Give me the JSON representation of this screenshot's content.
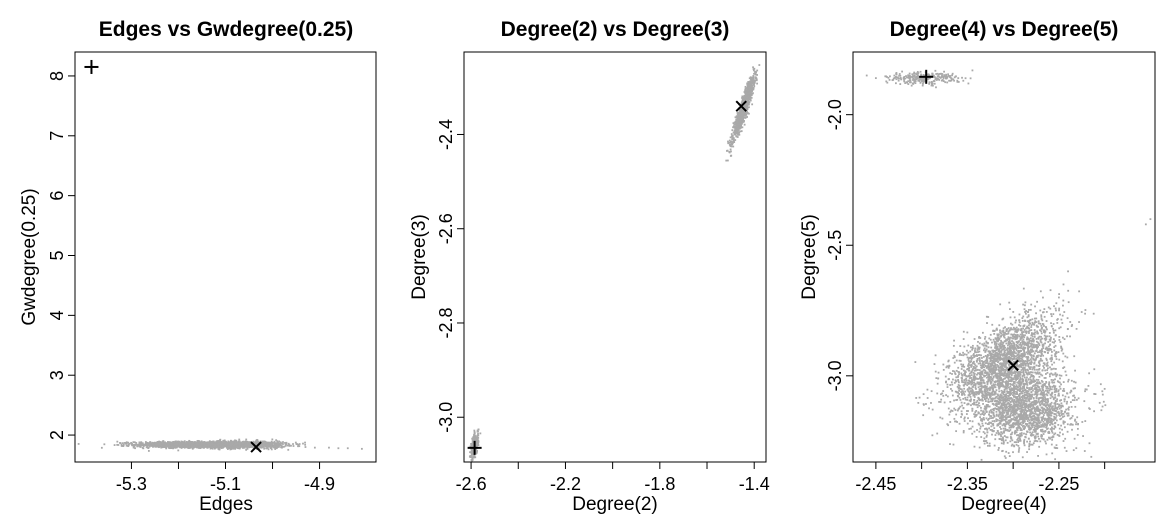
{
  "chart_data": [
    {
      "type": "scatter",
      "title": "Edges vs Gwdegree(0.25)",
      "xlabel": "Edges",
      "ylabel": "Gwdegree(0.25)",
      "xlim": [
        -5.42,
        -4.78
      ],
      "ylim": [
        1.55,
        8.4
      ],
      "xticks": [
        -5.3,
        -5.2,
        -5.1,
        -5.0,
        -4.9
      ],
      "xtick_labels": [
        "-5.3",
        "",
        "-5.1",
        "",
        "-4.9"
      ],
      "yticks": [
        2,
        3,
        4,
        5,
        6,
        7,
        8
      ],
      "ytick_labels": [
        "2",
        "3",
        "4",
        "5",
        "6",
        "7",
        "8"
      ],
      "point_color": "#a9a9a9",
      "clusters": [
        {
          "cx": -5.17,
          "cy": 1.84,
          "sx": 0.06,
          "sy": 0.025,
          "n": 1400,
          "rho": 0.0
        },
        {
          "cx": -5.06,
          "cy": 1.84,
          "sx": 0.045,
          "sy": 0.03,
          "n": 900,
          "rho": 0.0
        }
      ],
      "sparse_points": [
        [
          -4.93,
          1.8
        ],
        [
          -4.91,
          1.79
        ],
        [
          -4.88,
          1.79
        ],
        [
          -4.86,
          1.78
        ],
        [
          -4.84,
          1.78
        ],
        [
          -4.81,
          1.77
        ],
        [
          -5.31,
          1.88
        ],
        [
          -5.33,
          1.89
        ]
      ],
      "plus_marker": [
        -5.385,
        8.15
      ],
      "x_marker": [
        -5.035,
        1.8
      ]
    },
    {
      "type": "scatter",
      "title": "Degree(2) vs Degree(3)",
      "xlabel": "Degree(2)",
      "ylabel": "Degree(3)",
      "xlim": [
        -2.63,
        -1.35
      ],
      "ylim": [
        -3.095,
        -2.225
      ],
      "xticks": [
        -2.6,
        -2.4,
        -2.2,
        -2.0,
        -1.8,
        -1.6,
        -1.4
      ],
      "xtick_labels": [
        "-2.6",
        "",
        "-2.2",
        "",
        "-1.8",
        "",
        "-1.4"
      ],
      "yticks": [
        -3.0,
        -2.8,
        -2.6,
        -2.4
      ],
      "ytick_labels": [
        "-3.0",
        "-2.8",
        "-2.6",
        "-2.4"
      ],
      "point_color": "#a9a9a9",
      "clusters": [
        {
          "cx": -1.445,
          "cy": -2.345,
          "sx": 0.022,
          "sy": 0.032,
          "n": 1200,
          "rho": 0.93
        },
        {
          "cx": -2.585,
          "cy": -3.06,
          "sx": 0.008,
          "sy": 0.014,
          "n": 300,
          "rho": 0.5
        }
      ],
      "sparse_points": [],
      "plus_marker": [
        -2.585,
        -3.065
      ],
      "x_marker": [
        -1.455,
        -2.34
      ]
    },
    {
      "type": "scatter",
      "title": "Degree(4) vs Degree(5)",
      "xlabel": "Degree(4)",
      "ylabel": "Degree(5)",
      "xlim": [
        -2.475,
        -2.145
      ],
      "ylim": [
        -3.33,
        -1.76
      ],
      "xticks": [
        -2.45,
        -2.4,
        -2.35,
        -2.3,
        -2.25,
        -2.2
      ],
      "xtick_labels": [
        "-2.45",
        "",
        "-2.35",
        "",
        "-2.25",
        ""
      ],
      "yticks": [
        -3.0,
        -2.5,
        -2.0
      ],
      "ytick_labels": [
        "-3.0",
        "-2.5",
        "-2.0"
      ],
      "point_color": "#a9a9a9",
      "clusters": [
        {
          "cx": -2.31,
          "cy": -2.95,
          "sx": 0.03,
          "sy": 0.09,
          "n": 2200,
          "rho": 0.55
        },
        {
          "cx": -2.285,
          "cy": -3.13,
          "sx": 0.026,
          "sy": 0.07,
          "n": 1800,
          "rho": 0.1
        },
        {
          "cx": -2.4,
          "cy": -1.86,
          "sx": 0.02,
          "sy": 0.012,
          "n": 260,
          "rho": 0.0
        }
      ],
      "sparse_points": [
        [
          -2.46,
          -1.85
        ],
        [
          -2.45,
          -1.86
        ],
        [
          -2.37,
          -1.87
        ],
        [
          -2.36,
          -1.86
        ],
        [
          -2.155,
          -2.42
        ],
        [
          -2.15,
          -2.4
        ],
        [
          -2.2,
          -3.05
        ],
        [
          -2.21,
          -3.07
        ],
        [
          -2.24,
          -2.6
        ],
        [
          -2.245,
          -2.65
        ],
        [
          -2.25,
          -2.7
        ]
      ],
      "plus_marker": [
        -2.395,
        -1.855
      ],
      "x_marker": [
        -2.3,
        -2.96
      ]
    }
  ]
}
